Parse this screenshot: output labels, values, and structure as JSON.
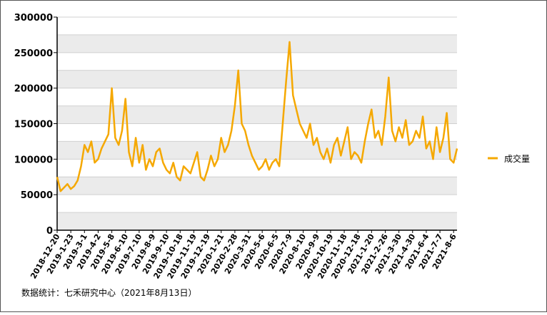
{
  "chart_data": {
    "type": "line",
    "source": "数据统计：七禾研究中心（2021年8月13日）",
    "categories": [
      "2018-12-20",
      null,
      null,
      null,
      "2019-1-23",
      null,
      null,
      null,
      "2019-3-1",
      null,
      null,
      null,
      "2019-4-2",
      null,
      null,
      null,
      "2019-5-8",
      null,
      null,
      null,
      "2019-6-10",
      null,
      null,
      null,
      "2019-7-10",
      null,
      null,
      null,
      "2019-8-9",
      null,
      null,
      null,
      "2019-9-10",
      null,
      null,
      null,
      "2019-10-18",
      null,
      null,
      null,
      "2019-11-19",
      null,
      null,
      null,
      "2019-12-19",
      null,
      null,
      null,
      "2020-1-21",
      null,
      null,
      null,
      "2020-2-28",
      null,
      null,
      null,
      "2020-3-31",
      null,
      null,
      null,
      "2020-5-6",
      null,
      null,
      null,
      "2020-6-5",
      null,
      null,
      null,
      "2020-7-9",
      null,
      null,
      null,
      "2020-8-10",
      null,
      null,
      null,
      "2020-9-9",
      null,
      null,
      null,
      "2020-10-19",
      null,
      null,
      null,
      "2020-11-18",
      null,
      null,
      null,
      "2020-12-18",
      null,
      null,
      null,
      "2021-1-20",
      null,
      null,
      null,
      "2021-2-26",
      null,
      null,
      null,
      "2021-3-30",
      null,
      null,
      null,
      "2021-4-30",
      null,
      null,
      null,
      "2021-6-4",
      null,
      null,
      null,
      "2021-7-7",
      null,
      null,
      null,
      "2021-8-6",
      null
    ],
    "series": [
      {
        "name": "成交量",
        "color": "#f5a800",
        "values": [
          75000,
          55000,
          60000,
          65000,
          58000,
          62000,
          70000,
          90000,
          120000,
          110000,
          125000,
          95000,
          100000,
          115000,
          125000,
          135000,
          200000,
          130000,
          120000,
          140000,
          185000,
          110000,
          90000,
          130000,
          95000,
          120000,
          85000,
          100000,
          90000,
          110000,
          115000,
          95000,
          85000,
          80000,
          95000,
          75000,
          70000,
          90000,
          85000,
          80000,
          95000,
          110000,
          75000,
          70000,
          85000,
          105000,
          90000,
          100000,
          130000,
          110000,
          120000,
          140000,
          175000,
          225000,
          150000,
          140000,
          120000,
          105000,
          95000,
          85000,
          90000,
          100000,
          85000,
          95000,
          100000,
          90000,
          150000,
          210000,
          265000,
          190000,
          170000,
          150000,
          140000,
          130000,
          150000,
          120000,
          130000,
          110000,
          100000,
          115000,
          95000,
          120000,
          130000,
          105000,
          125000,
          145000,
          100000,
          110000,
          105000,
          95000,
          125000,
          150000,
          170000,
          130000,
          140000,
          120000,
          160000,
          215000,
          140000,
          125000,
          145000,
          130000,
          155000,
          120000,
          125000,
          140000,
          130000,
          160000,
          115000,
          125000,
          100000,
          145000,
          110000,
          130000,
          165000,
          100000,
          95000,
          115000
        ]
      }
    ],
    "ylim": [
      0,
      300000
    ],
    "yticks": [
      0,
      50000,
      100000,
      150000,
      200000,
      250000,
      300000
    ],
    "legend": "right"
  }
}
